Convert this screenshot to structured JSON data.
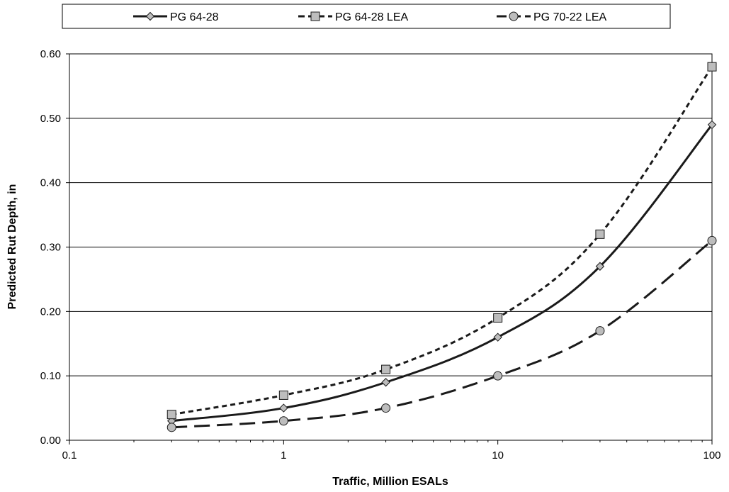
{
  "chart_data": {
    "type": "line",
    "xlabel": "Traffic, Million ESALs",
    "ylabel": "Predicted Rut Depth, in",
    "x_scale": "log",
    "xlim": [
      0.1,
      100
    ],
    "ylim": [
      0,
      0.6
    ],
    "x_ticks": [
      0.1,
      1,
      10,
      100
    ],
    "x_tick_labels": [
      "0.1",
      "1",
      "10",
      "100"
    ],
    "y_ticks": [
      0,
      0.1,
      0.2,
      0.3,
      0.4,
      0.5,
      0.6
    ],
    "y_tick_labels": [
      "0.00",
      "0.10",
      "0.20",
      "0.30",
      "0.40",
      "0.50",
      "0.60"
    ],
    "grid": "horizontal",
    "legend_position": "top",
    "x": [
      0.3,
      1,
      3,
      10,
      30,
      100
    ],
    "series": [
      {
        "name": "PG 64-28",
        "values": [
          0.03,
          0.05,
          0.09,
          0.16,
          0.27,
          0.49
        ],
        "line_style": "solid",
        "marker": "diamond",
        "color": "#1a1a1a",
        "marker_fill": "#bdbdbd"
      },
      {
        "name": "PG 64-28 LEA",
        "values": [
          0.04,
          0.07,
          0.11,
          0.19,
          0.32,
          0.58
        ],
        "line_style": "short-dash",
        "marker": "square",
        "color": "#1a1a1a",
        "marker_fill": "#bdbdbd"
      },
      {
        "name": "PG 70-22 LEA",
        "values": [
          0.02,
          0.03,
          0.05,
          0.1,
          0.17,
          0.31
        ],
        "line_style": "long-dash",
        "marker": "circle",
        "color": "#1a1a1a",
        "marker_fill": "#bdbdbd"
      }
    ]
  }
}
